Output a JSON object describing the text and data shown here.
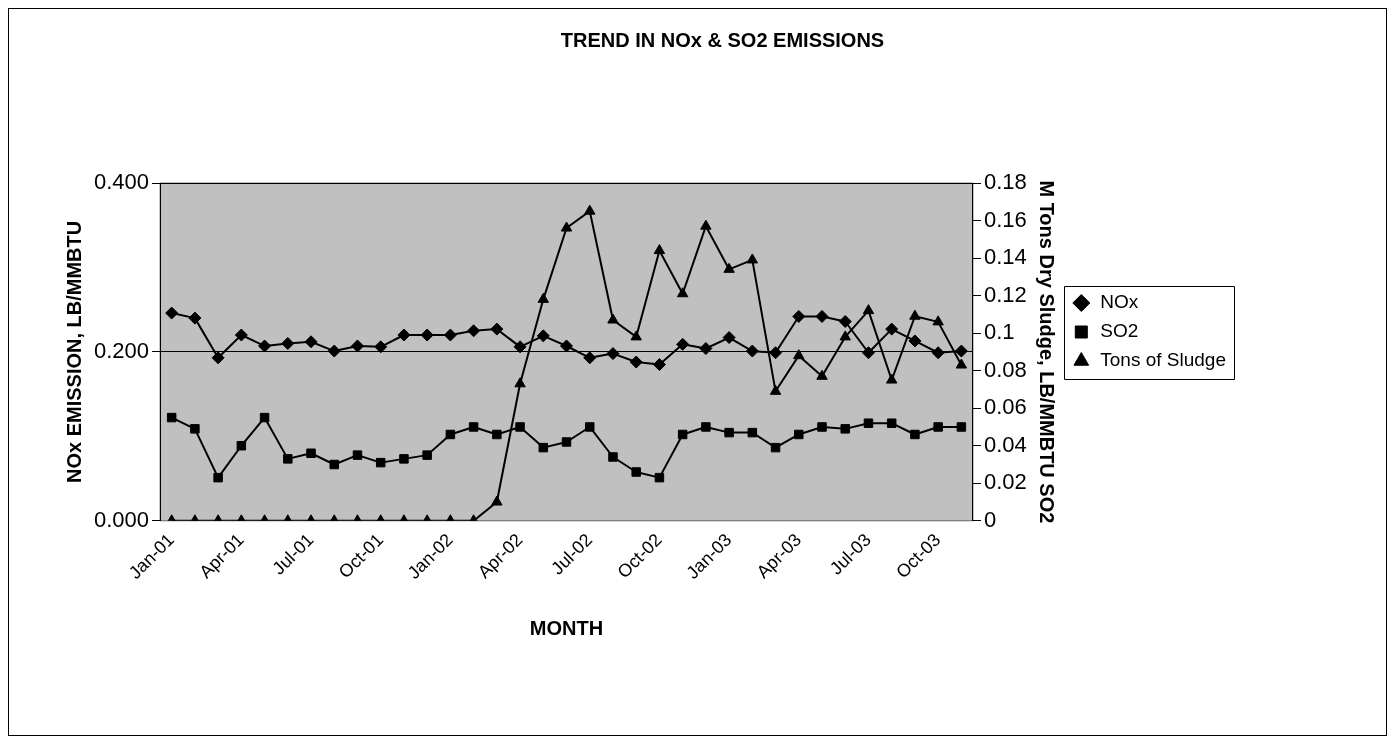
{
  "chart_data": {
    "type": "line",
    "title": "TREND IN NOx & SO2 EMISSIONS",
    "xlabel": "MONTH",
    "ylabel": "NOx EMISSION, LB/MMBTU",
    "y2label": "M Tons Dry Sludge, LB/MMBTU SO2",
    "categories": [
      "Jan-01",
      null,
      null,
      "Apr-01",
      null,
      null,
      "Jul-01",
      null,
      null,
      "Oct-01",
      null,
      null,
      "Jan-02",
      null,
      null,
      "Apr-02",
      null,
      null,
      "Jul-02",
      null,
      null,
      "Oct-02",
      null,
      null,
      "Jan-03",
      null,
      null,
      "Apr-03",
      null,
      null,
      "Jul-03",
      null,
      null,
      "Oct-03",
      null
    ],
    "series": [
      {
        "name": "NOx",
        "color": "#000000",
        "marker": "diamond",
        "values": [
          0.246,
          0.24,
          0.193,
          0.22,
          0.207,
          0.21,
          0.212,
          0.201,
          0.207,
          0.206,
          0.22,
          0.22,
          0.22,
          0.225,
          0.227,
          0.206,
          0.219,
          0.207,
          0.193,
          0.198,
          0.188,
          0.185,
          0.209,
          0.204,
          0.217,
          0.201,
          0.199,
          0.242,
          0.242,
          0.236,
          0.199,
          0.227,
          0.213,
          0.199,
          0.201
        ]
      },
      {
        "name": "SO2",
        "color": "#000000",
        "marker": "square",
        "axis": "y2",
        "values": [
          0.055,
          0.049,
          0.023,
          0.04,
          0.055,
          0.033,
          0.036,
          0.03,
          0.035,
          0.031,
          0.033,
          0.035,
          0.046,
          0.05,
          0.046,
          0.05,
          0.039,
          0.042,
          0.05,
          0.034,
          0.026,
          0.023,
          0.046,
          0.05,
          0.047,
          0.047,
          0.039,
          0.046,
          0.05,
          0.049,
          0.052,
          0.052,
          0.046,
          0.05,
          0.05
        ]
      },
      {
        "name": "Tons of Sludge",
        "color": "#000000",
        "marker": "triangle",
        "axis": "y2",
        "values": [
          0,
          0,
          0,
          0,
          0,
          0,
          0,
          0,
          0,
          0,
          0,
          0,
          0,
          0,
          0.01,
          0.073,
          0.118,
          0.156,
          0.165,
          0.107,
          0.098,
          0.144,
          0.121,
          0.157,
          0.134,
          0.139,
          0.069,
          0.088,
          0.077,
          0.098,
          0.112,
          0.075,
          0.109,
          0.106,
          0.083
        ]
      }
    ],
    "ylim": [
      0,
      0.4
    ],
    "yticks": [
      {
        "value": 0,
        "label": "0.000"
      },
      {
        "value": 0.2,
        "label": "0.200"
      },
      {
        "value": 0.4,
        "label": "0.400"
      }
    ],
    "y2lim": [
      0,
      0.18
    ],
    "y2ticks": [
      0,
      0.02,
      0.04,
      0.06,
      0.08,
      0.1,
      0.12,
      0.14,
      0.16,
      0.18
    ],
    "grid": "y",
    "legend": "right",
    "line_style": "solid"
  }
}
